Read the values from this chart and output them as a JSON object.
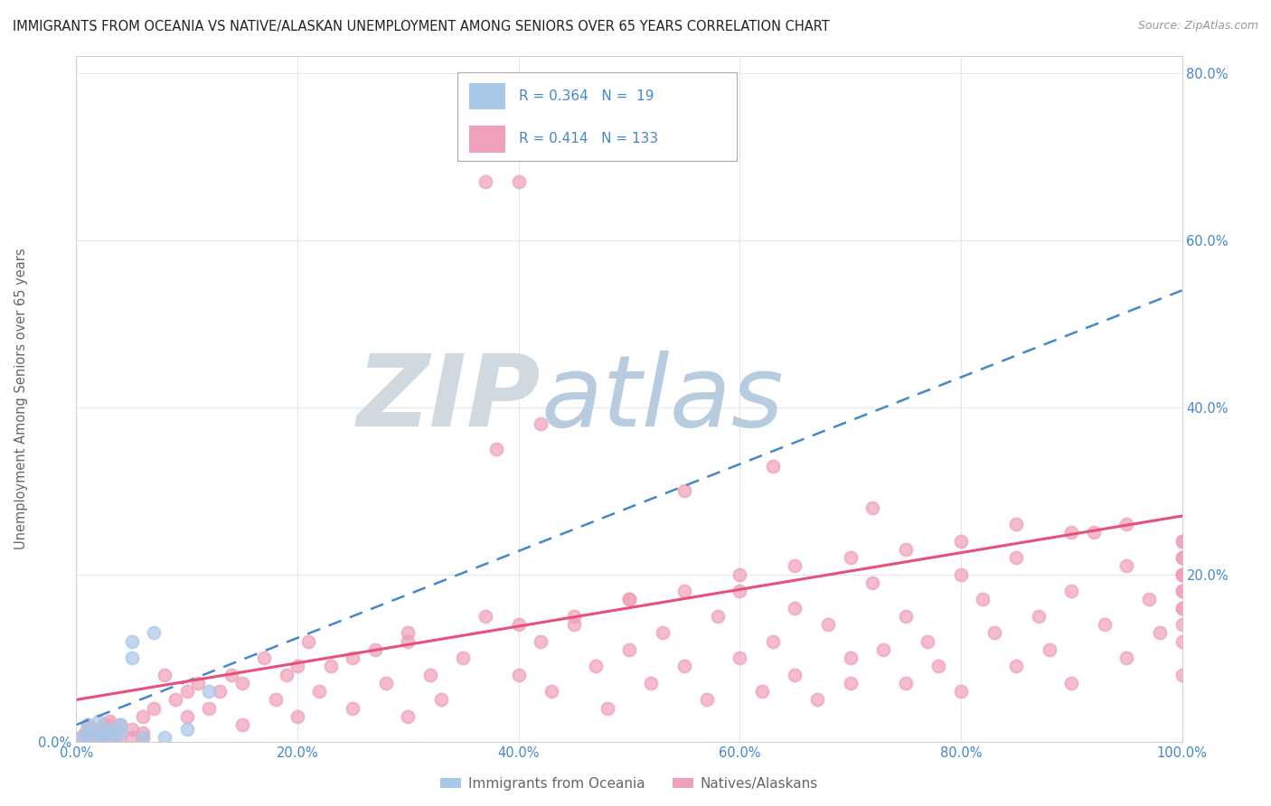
{
  "title": "IMMIGRANTS FROM OCEANIA VS NATIVE/ALASKAN UNEMPLOYMENT AMONG SENIORS OVER 65 YEARS CORRELATION CHART",
  "source": "Source: ZipAtlas.com",
  "ylabel": "Unemployment Among Seniors over 65 years",
  "xlim": [
    0.0,
    1.0
  ],
  "ylim": [
    0.0,
    0.82
  ],
  "xticks": [
    0.0,
    0.2,
    0.4,
    0.6,
    0.8,
    1.0
  ],
  "xtick_labels": [
    "0.0%",
    "20.0%",
    "40.0%",
    "60.0%",
    "80.0%",
    "100.0%"
  ],
  "ytick_positions": [
    0.0,
    0.2,
    0.4,
    0.6,
    0.8
  ],
  "right_ytick_positions": [
    0.2,
    0.4,
    0.6,
    0.8
  ],
  "right_ytick_labels": [
    "20.0%",
    "40.0%",
    "60.0%",
    "80.0%"
  ],
  "blue_R": 0.364,
  "blue_N": 19,
  "pink_R": 0.414,
  "pink_N": 133,
  "blue_color": "#a8c8e8",
  "pink_color": "#f0a0b8",
  "blue_line_color": "#4488cc",
  "pink_line_color": "#e8507a",
  "grid_color": "#e0e8f0",
  "title_color": "#222222",
  "axis_label_color": "#666666",
  "tick_label_color": "#4488cc",
  "watermark_zip_color": "#d0d8e0",
  "watermark_atlas_color": "#b8cce0",
  "blue_scatter_x": [
    0.005,
    0.01,
    0.01,
    0.015,
    0.02,
    0.02,
    0.025,
    0.03,
    0.03,
    0.035,
    0.04,
    0.04,
    0.05,
    0.05,
    0.06,
    0.07,
    0.08,
    0.1,
    0.12
  ],
  "blue_scatter_y": [
    0.005,
    0.01,
    0.02,
    0.005,
    0.01,
    0.025,
    0.005,
    0.01,
    0.015,
    0.005,
    0.01,
    0.02,
    0.1,
    0.12,
    0.005,
    0.13,
    0.005,
    0.015,
    0.06
  ],
  "blue_trend_x": [
    0.0,
    1.0
  ],
  "blue_trend_y_start": 0.02,
  "blue_trend_y_end": 0.54,
  "pink_trend_y_start": 0.05,
  "pink_trend_y_end": 0.27
}
